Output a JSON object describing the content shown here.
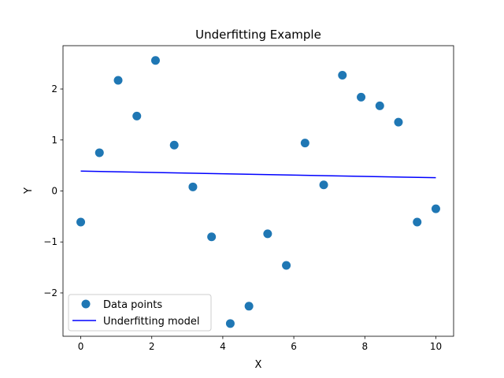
{
  "chart_data": {
    "type": "scatter",
    "title": "Underfitting Example",
    "xlabel": "X",
    "ylabel": "Y",
    "xlim": [
      -0.5,
      10.5
    ],
    "ylim": [
      -2.85,
      2.85
    ],
    "xticks": [
      0,
      2,
      4,
      6,
      8,
      10
    ],
    "yticks": [
      -2,
      -1,
      0,
      1,
      2
    ],
    "grid": false,
    "legend_position": "lower-left",
    "series": [
      {
        "name": "Data points",
        "kind": "scatter",
        "color": "#1f77b4",
        "x": [
          0,
          0.526,
          1.053,
          1.579,
          2.105,
          2.632,
          3.158,
          3.684,
          4.211,
          4.737,
          5.263,
          5.789,
          6.316,
          6.842,
          7.368,
          7.895,
          8.421,
          8.947,
          9.474,
          10
        ],
        "y": [
          -0.61,
          0.75,
          2.17,
          1.47,
          2.56,
          0.9,
          0.08,
          -0.9,
          -2.6,
          -2.26,
          -0.84,
          -1.46,
          0.94,
          0.12,
          2.27,
          1.84,
          1.67,
          1.35,
          -0.61,
          -0.35
        ]
      },
      {
        "name": "Underfitting model",
        "kind": "line",
        "color": "#0000ff",
        "x": [
          0,
          10
        ],
        "y": [
          0.39,
          0.26
        ]
      }
    ]
  }
}
